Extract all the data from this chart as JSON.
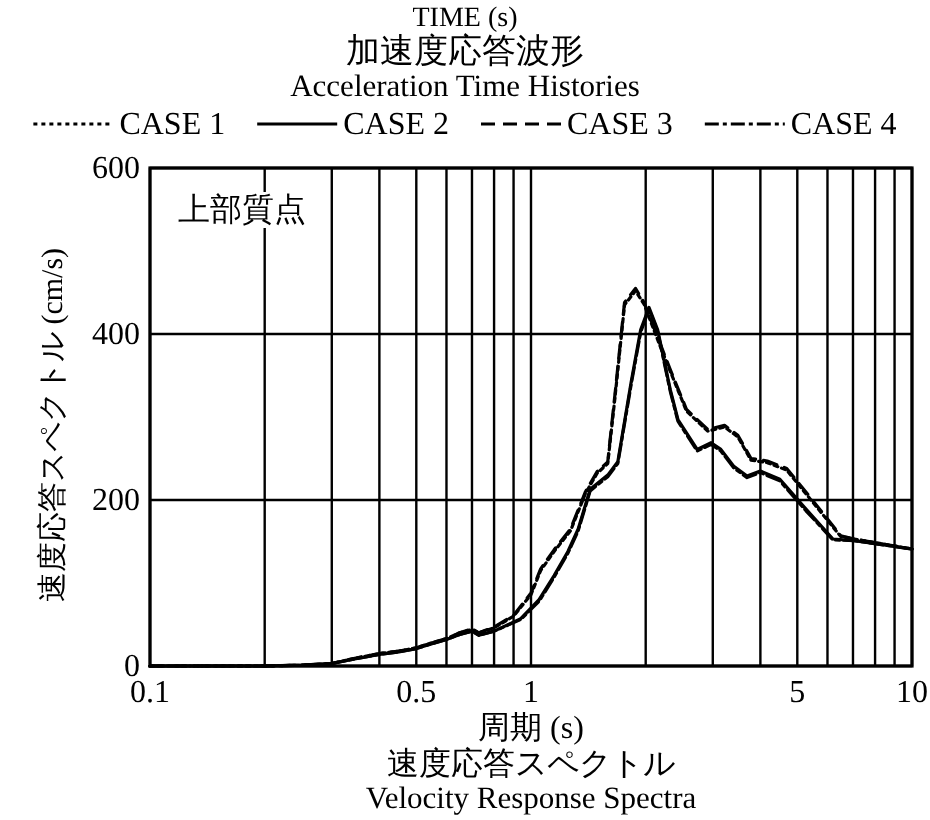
{
  "chart_data": {
    "type": "line",
    "title": "速度応答スペクトル",
    "subtitle": "Velocity Response Spectra",
    "annotations": [
      "TIME (s)",
      "加速度応答波形",
      "Acceleration Time Histories",
      "上部質点"
    ],
    "xlabel": "周期 (s)",
    "ylabel": "速度応答スペクトル (cm/s)",
    "log": "x",
    "grid": true,
    "legend": "top",
    "xlim": [
      0.1,
      10
    ],
    "ylim": [
      0,
      600
    ],
    "xticks": [
      0.1,
      {
        "value": 0.2,
        "label": null
      },
      {
        "value": 0.3,
        "label": null
      },
      {
        "value": 0.4,
        "label": null
      },
      0.5,
      {
        "value": 0.6,
        "label": null
      },
      {
        "value": 0.7,
        "label": null
      },
      {
        "value": 0.8,
        "label": null
      },
      {
        "value": 0.9,
        "label": null
      },
      1,
      {
        "value": 2,
        "label": null
      },
      {
        "value": 3,
        "label": null
      },
      {
        "value": 4,
        "label": null
      },
      5,
      {
        "value": 6,
        "label": null
      },
      {
        "value": 7,
        "label": null
      },
      {
        "value": 8,
        "label": null
      },
      {
        "value": 9,
        "label": null
      },
      10
    ],
    "yticks": [
      0,
      200,
      400,
      600
    ],
    "series": [
      {
        "name": "CASE 1",
        "color": "#000000",
        "line_style": "dotted",
        "x": [
          0.1,
          0.2,
          0.25,
          0.3,
          0.35,
          0.4,
          0.45,
          0.5,
          0.55,
          0.6,
          0.65,
          0.7,
          0.73,
          0.8,
          0.9,
          1.0,
          1.06,
          1.15,
          1.27,
          1.39,
          1.49,
          1.59,
          1.66,
          1.76,
          1.88,
          1.98,
          2.18,
          2.32,
          2.56,
          2.91,
          3.22,
          3.49,
          3.78,
          4.17,
          4.69,
          5.52,
          6.5,
          7.05,
          10
        ],
        "values": [
          0,
          0,
          1,
          3,
          10,
          15,
          18,
          22,
          28,
          33,
          40,
          44,
          40,
          46,
          60,
          86,
          115,
          138,
          163,
          208,
          232,
          244,
          322,
          435,
          452,
          436,
          386,
          355,
          307,
          283,
          288,
          276,
          248,
          245,
          236,
          196,
          156,
          153,
          141
        ]
      },
      {
        "name": "CASE 2",
        "color": "#000000",
        "line_style": "solid",
        "x": [
          0.1,
          0.2,
          0.25,
          0.3,
          0.35,
          0.4,
          0.45,
          0.5,
          0.55,
          0.6,
          0.65,
          0.7,
          0.73,
          0.8,
          0.94,
          1.05,
          1.15,
          1.25,
          1.33,
          1.43,
          1.59,
          1.69,
          1.83,
          1.94,
          2.04,
          2.15,
          2.32,
          2.43,
          2.73,
          2.97,
          3.15,
          3.4,
          3.69,
          4.0,
          4.5,
          5.27,
          6.2,
          7.05,
          10
        ],
        "values": [
          0,
          0,
          1,
          3,
          9,
          14,
          17,
          21,
          27,
          32,
          38,
          42,
          37,
          42,
          57,
          80,
          109,
          138,
          165,
          213,
          230,
          246,
          341,
          405,
          432,
          405,
          333,
          297,
          261,
          269,
          261,
          241,
          229,
          235,
          225,
          189,
          153,
          151,
          141
        ]
      },
      {
        "name": "CASE 3",
        "color": "#000000",
        "line_style": "dashed",
        "x": [
          0.1,
          0.2,
          0.25,
          0.3,
          0.35,
          0.4,
          0.45,
          0.5,
          0.55,
          0.6,
          0.65,
          0.7,
          0.73,
          0.8,
          0.9,
          1.0,
          1.06,
          1.15,
          1.27,
          1.39,
          1.49,
          1.59,
          1.66,
          1.76,
          1.88,
          1.98,
          2.18,
          2.32,
          2.56,
          2.91,
          3.22,
          3.49,
          3.78,
          4.17,
          4.69,
          5.52,
          6.5,
          7.05,
          10
        ],
        "values": [
          0,
          0,
          1,
          3,
          10,
          15,
          18,
          22,
          28,
          33,
          40,
          45,
          40,
          47,
          61,
          88,
          117,
          140,
          165,
          210,
          234,
          246,
          326,
          438,
          455,
          438,
          389,
          357,
          309,
          285,
          290,
          278,
          250,
          247,
          238,
          198,
          157,
          153,
          141
        ]
      },
      {
        "name": "CASE 4",
        "color": "#000000",
        "line_style": "dashdot",
        "x": [
          0.1,
          0.2,
          0.25,
          0.3,
          0.35,
          0.4,
          0.45,
          0.5,
          0.55,
          0.6,
          0.65,
          0.7,
          0.73,
          0.8,
          0.94,
          1.05,
          1.15,
          1.25,
          1.33,
          1.43,
          1.59,
          1.69,
          1.83,
          1.94,
          2.04,
          2.15,
          2.32,
          2.43,
          2.73,
          2.97,
          3.15,
          3.4,
          3.69,
          4.0,
          4.5,
          5.27,
          6.2,
          7.05,
          10
        ],
        "values": [
          0,
          0,
          1,
          3,
          9,
          14,
          17,
          21,
          27,
          32,
          38,
          42,
          37,
          42,
          56,
          78,
          107,
          136,
          163,
          211,
          228,
          244,
          338,
          402,
          430,
          403,
          331,
          295,
          259,
          267,
          259,
          239,
          227,
          233,
          223,
          187,
          152,
          151,
          141
        ]
      }
    ]
  }
}
